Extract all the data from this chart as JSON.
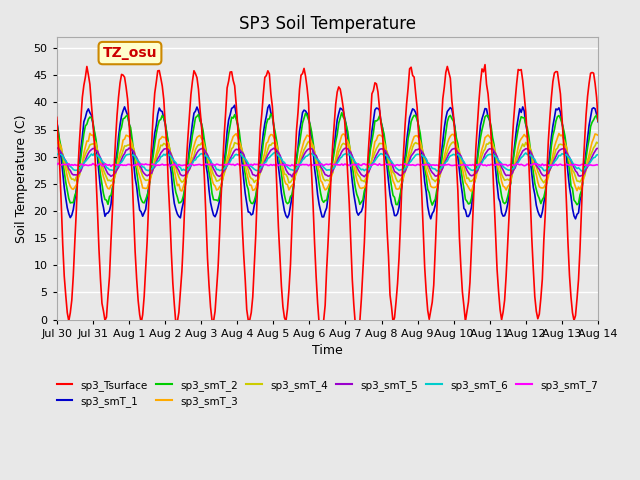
{
  "title": "SP3 Soil Temperature",
  "ylabel": "Soil Temperature (C)",
  "xlabel": "Time",
  "annotation_text": "TZ_osu",
  "annotation_bg": "#FFFFCC",
  "annotation_border": "#CC8800",
  "annotation_text_color": "#CC0000",
  "ylim": [
    0,
    52
  ],
  "yticks": [
    0,
    5,
    10,
    15,
    20,
    25,
    30,
    35,
    40,
    45,
    50
  ],
  "bg_color": "#E8E8E8",
  "plot_bg": "#E8E8E8",
  "grid_color": "#FFFFFF",
  "series_colors": {
    "sp3_Tsurface": "#FF0000",
    "sp3_smT_1": "#0000CC",
    "sp3_smT_2": "#00CC00",
    "sp3_smT_3": "#FFAA00",
    "sp3_smT_4": "#CCCC00",
    "sp3_smT_5": "#9900CC",
    "sp3_smT_6": "#00CCCC",
    "sp3_smT_7": "#FF00FF"
  },
  "date_labels": [
    "Jul 30",
    "Jul 31",
    "Aug 1",
    "Aug 2",
    "Aug 3",
    "Aug 4",
    "Aug 5",
    "Aug 6",
    "Aug 7",
    "Aug 8",
    "Aug 9",
    "Aug 10",
    "Aug 11",
    "Aug 12",
    "Aug 13",
    "Aug 14"
  ],
  "n_days": 15,
  "seed": 42
}
